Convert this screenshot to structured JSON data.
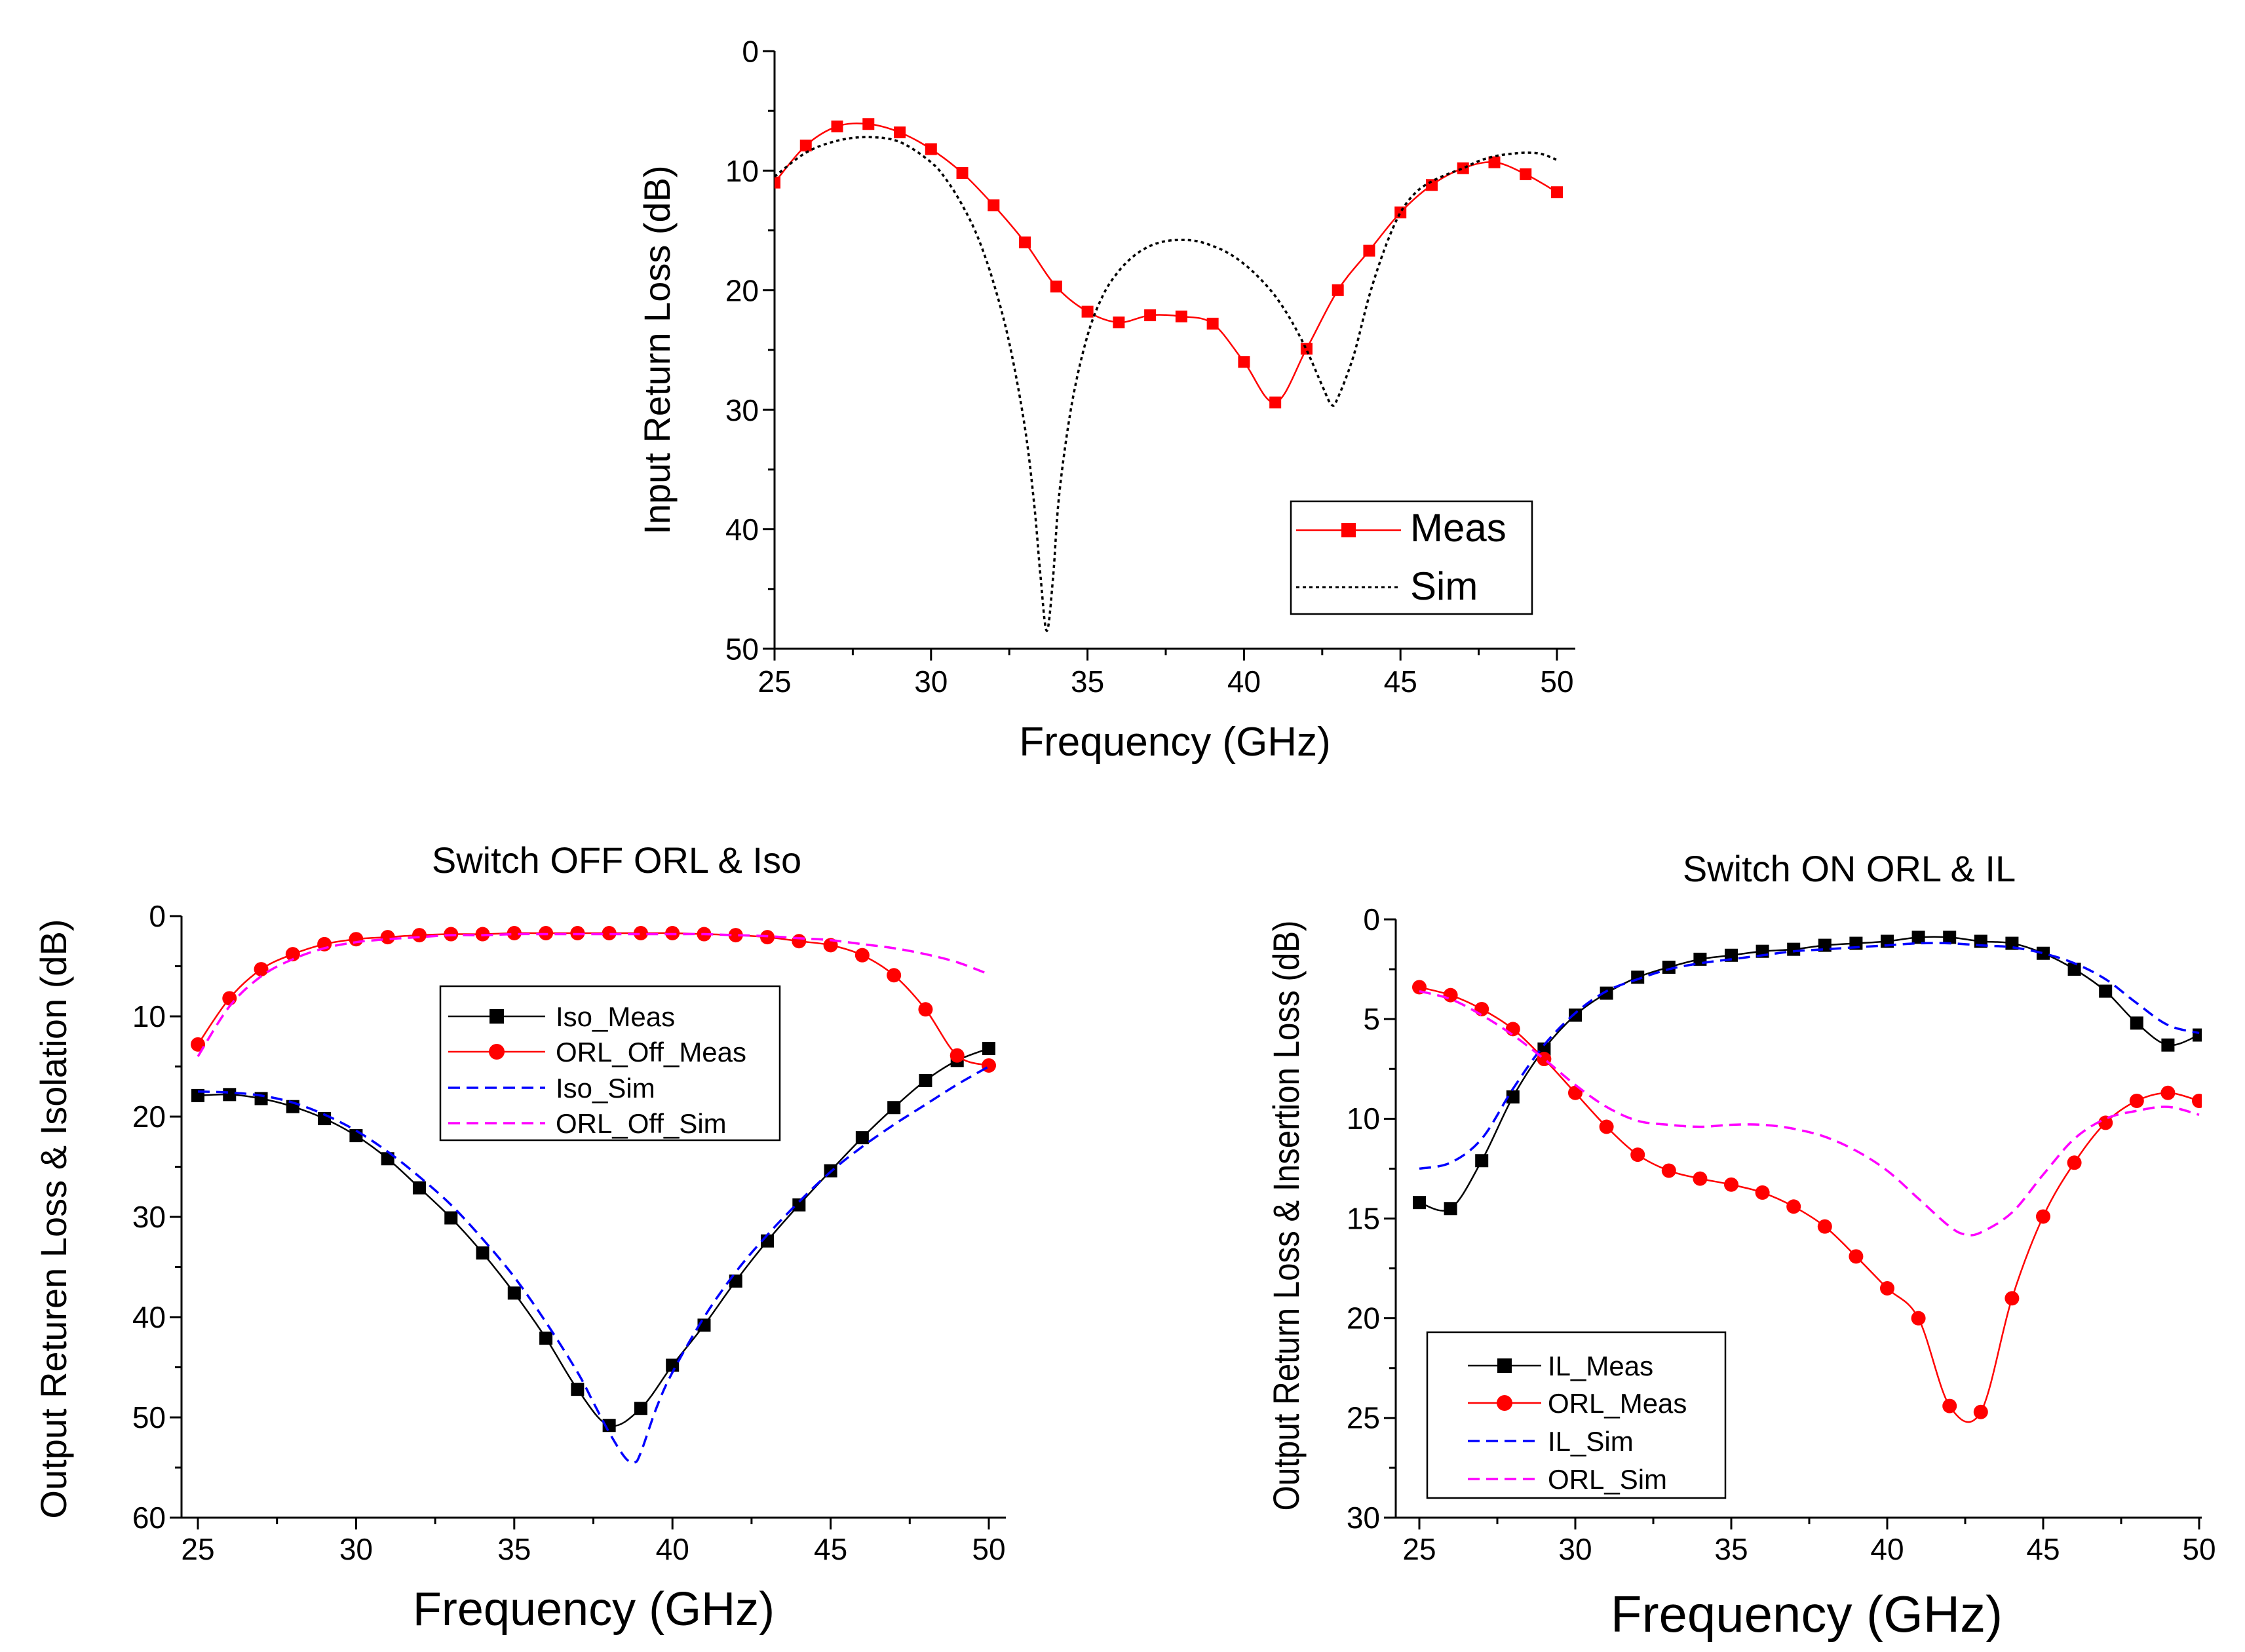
{
  "chart_data": [
    {
      "id": "top",
      "type": "line",
      "title": "",
      "xlabel": "Frequency (GHz)",
      "ylabel": "Input Return Loss (dB)",
      "xlim": [
        25,
        50
      ],
      "ylim": [
        0,
        50
      ],
      "y_inverted": true,
      "x_ticks": [
        25,
        30,
        35,
        40,
        45,
        50
      ],
      "y_ticks": [
        0,
        10,
        20,
        30,
        40,
        50
      ],
      "legend_position": "bottom-right",
      "series": [
        {
          "name": "Meas",
          "color": "#ff0000",
          "line": "solid",
          "marker": "square",
          "x": [
            25,
            26,
            27,
            28,
            29,
            30,
            31,
            32,
            33,
            34,
            35,
            36,
            37,
            38,
            39,
            40,
            41,
            42,
            43,
            44,
            45,
            46,
            47,
            48,
            49,
            50
          ],
          "y": [
            11,
            7.9,
            6.3,
            6.1,
            6.8,
            8.2,
            10.2,
            12.9,
            16,
            19.7,
            21.8,
            22.7,
            22.1,
            22.2,
            22.8,
            26,
            29.4,
            24.9,
            20,
            16.7,
            13.5,
            11.2,
            9.8,
            9.3,
            10.3,
            11.8
          ]
        },
        {
          "name": "Sim",
          "color": "#000000",
          "line": "dotted",
          "marker": "none",
          "x": [
            25,
            26,
            27,
            28,
            29,
            30,
            30.5,
            31,
            31.5,
            32,
            32.5,
            33,
            33.3,
            33.5,
            33.7,
            33.9,
            34.1,
            34.5,
            35,
            35.5,
            36,
            36.5,
            37,
            37.5,
            38,
            38.5,
            39,
            39.5,
            40,
            40.5,
            41,
            41.5,
            42,
            42.5,
            42.8,
            43,
            43.5,
            44,
            44.5,
            45,
            45.5,
            46,
            46.5,
            47,
            47.5,
            48,
            48.5,
            49,
            49.5,
            50
          ],
          "y": [
            10.5,
            8.5,
            7.5,
            7.2,
            7.6,
            9.3,
            10.8,
            12.9,
            15.6,
            19.4,
            24.4,
            31.5,
            38,
            44,
            48.5,
            44,
            37,
            29.5,
            23.8,
            20.4,
            18.4,
            17.1,
            16.3,
            15.9,
            15.8,
            15.9,
            16.3,
            16.9,
            17.8,
            19,
            20.5,
            22.5,
            25,
            28,
            29.6,
            29,
            25.5,
            20.5,
            16.5,
            13.5,
            11.8,
            10.9,
            10.3,
            9.8,
            9.2,
            8.8,
            8.6,
            8.5,
            8.6,
            9.1
          ]
        }
      ]
    },
    {
      "id": "bottom-left",
      "type": "line",
      "title": "Switch OFF ORL & Iso",
      "xlabel": "Frequency (GHz)",
      "ylabel": "Output Returen Loss & Isolation (dB)",
      "xlim": [
        25,
        50
      ],
      "ylim": [
        0,
        60
      ],
      "y_inverted": true,
      "x_ticks": [
        25,
        30,
        35,
        40,
        45,
        50
      ],
      "y_ticks": [
        0,
        10,
        20,
        30,
        40,
        50,
        60
      ],
      "legend_position": "top-center",
      "series": [
        {
          "name": "Iso_Meas",
          "color": "#000000",
          "line": "solid",
          "marker": "square",
          "x": [
            25,
            26,
            27,
            28,
            29,
            30,
            31,
            32,
            33,
            34,
            35,
            36,
            37,
            38,
            39,
            40,
            41,
            42,
            43,
            44,
            45,
            46,
            47,
            48,
            49,
            50
          ],
          "y": [
            17.9,
            17.8,
            18.2,
            19,
            20.2,
            21.9,
            24.2,
            27.1,
            30.1,
            33.6,
            37.6,
            42.1,
            47.2,
            50.8,
            49.1,
            44.8,
            40.8,
            36.4,
            32.4,
            28.8,
            25.4,
            22.1,
            19.1,
            16.4,
            14.4,
            13.2
          ]
        },
        {
          "name": "ORL_Off_Meas",
          "color": "#ff0000",
          "line": "solid",
          "marker": "circle",
          "x": [
            25,
            26,
            27,
            28,
            29,
            30,
            31,
            32,
            33,
            34,
            35,
            36,
            37,
            38,
            39,
            40,
            41,
            42,
            43,
            44,
            45,
            46,
            47,
            48,
            49,
            50
          ],
          "y": [
            12.8,
            8.2,
            5.3,
            3.8,
            2.8,
            2.3,
            2.1,
            1.9,
            1.8,
            1.8,
            1.7,
            1.7,
            1.7,
            1.7,
            1.7,
            1.7,
            1.8,
            1.9,
            2.1,
            2.5,
            2.9,
            3.9,
            5.9,
            9.3,
            13.9,
            14.9
          ]
        },
        {
          "name": "Iso_Sim",
          "color": "#0000ff",
          "line": "dashed",
          "marker": "none",
          "x": [
            25,
            26,
            27,
            28,
            29,
            30,
            31,
            32,
            33,
            34,
            35,
            36,
            37,
            37.5,
            38,
            38.5,
            38.8,
            39,
            39.5,
            40,
            41,
            42,
            43,
            44,
            45,
            46,
            47,
            48,
            49,
            50
          ],
          "y": [
            17.5,
            17.6,
            17.9,
            18.6,
            19.8,
            21.4,
            23.5,
            26,
            28.8,
            32.2,
            36,
            40.5,
            45.5,
            48.5,
            51.5,
            54,
            54.5,
            53.5,
            49,
            45.5,
            40,
            35.5,
            31.8,
            28.5,
            25.5,
            23,
            20.8,
            18.8,
            16.8,
            15
          ]
        },
        {
          "name": "ORL_Off_Sim",
          "color": "#ff00ff",
          "line": "dashed",
          "marker": "none",
          "x": [
            25,
            26,
            27,
            28,
            29,
            30,
            31,
            32,
            33,
            34,
            35,
            36,
            37,
            38,
            39,
            40,
            41,
            42,
            43,
            44,
            45,
            46,
            47,
            48,
            49,
            50
          ],
          "y": [
            14,
            9,
            6,
            4.3,
            3.2,
            2.6,
            2.3,
            2.1,
            1.9,
            1.9,
            1.8,
            1.8,
            1.8,
            1.8,
            1.8,
            1.8,
            1.8,
            1.9,
            2,
            2.2,
            2.4,
            2.8,
            3.2,
            3.8,
            4.6,
            5.8
          ]
        }
      ]
    },
    {
      "id": "bottom-right",
      "type": "line",
      "title": "Switch ON ORL & IL",
      "xlabel": "Frequency (GHz)",
      "ylabel": "Output Return Loss & Insertion Loss (dB)",
      "xlim": [
        25,
        50
      ],
      "ylim": [
        0,
        30
      ],
      "y_inverted": true,
      "x_ticks": [
        25,
        30,
        35,
        40,
        45,
        50
      ],
      "y_ticks": [
        0,
        5,
        10,
        15,
        20,
        25,
        30
      ],
      "legend_position": "bottom-left",
      "series": [
        {
          "name": "IL_Meas",
          "color": "#000000",
          "line": "solid",
          "marker": "square",
          "x": [
            25,
            26,
            27,
            28,
            29,
            30,
            31,
            32,
            33,
            34,
            35,
            36,
            37,
            38,
            39,
            40,
            41,
            42,
            43,
            44,
            45,
            46,
            47,
            48,
            49,
            50
          ],
          "y": [
            14.2,
            14.5,
            12.1,
            8.9,
            6.5,
            4.8,
            3.7,
            2.9,
            2.4,
            2,
            1.8,
            1.6,
            1.5,
            1.3,
            1.2,
            1.1,
            0.9,
            0.9,
            1.1,
            1.2,
            1.7,
            2.5,
            3.6,
            5.2,
            6.3,
            5.8
          ]
        },
        {
          "name": "ORL_Meas",
          "color": "#ff0000",
          "line": "solid",
          "marker": "circle",
          "x": [
            25,
            26,
            27,
            28,
            29,
            30,
            31,
            32,
            33,
            34,
            35,
            36,
            37,
            38,
            39,
            40,
            41,
            42,
            43,
            44,
            45,
            46,
            47,
            48,
            49,
            50
          ],
          "y": [
            3.4,
            3.8,
            4.5,
            5.5,
            7,
            8.7,
            10.4,
            11.8,
            12.6,
            13,
            13.3,
            13.7,
            14.4,
            15.4,
            16.9,
            18.5,
            20,
            24.4,
            24.7,
            19,
            14.9,
            12.2,
            10.2,
            9.1,
            8.7,
            9.1
          ]
        },
        {
          "name": "IL_Sim",
          "color": "#0000ff",
          "line": "dashed",
          "marker": "none",
          "x": [
            25,
            26,
            27,
            28,
            29,
            30,
            31,
            32,
            33,
            34,
            35,
            36,
            37,
            38,
            39,
            40,
            41,
            42,
            43,
            44,
            45,
            46,
            47,
            48,
            49,
            50
          ],
          "y": [
            12.5,
            12.2,
            11,
            8.5,
            6.3,
            4.7,
            3.6,
            3,
            2.5,
            2.2,
            2,
            1.8,
            1.6,
            1.5,
            1.4,
            1.3,
            1.2,
            1.2,
            1.3,
            1.4,
            1.7,
            2.2,
            3,
            4.2,
            5.3,
            5.7
          ]
        },
        {
          "name": "ORL_Sim",
          "color": "#ff00ff",
          "line": "dashed",
          "marker": "none",
          "x": [
            25,
            26,
            27,
            28,
            29,
            30,
            31,
            32,
            33,
            34,
            35,
            36,
            37,
            38,
            39,
            40,
            41,
            42,
            42.5,
            43,
            44,
            45,
            46,
            47,
            48,
            49,
            50
          ],
          "y": [
            3.6,
            4,
            4.8,
            5.8,
            7,
            8.3,
            9.4,
            10.1,
            10.3,
            10.4,
            10.3,
            10.3,
            10.5,
            10.9,
            11.6,
            12.6,
            14,
            15.4,
            15.8,
            15.7,
            14.7,
            12.8,
            11,
            10,
            9.6,
            9.4,
            9.8
          ]
        }
      ]
    }
  ]
}
